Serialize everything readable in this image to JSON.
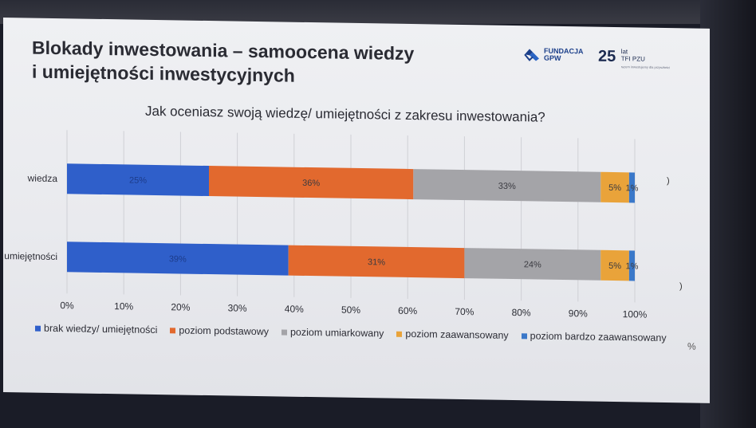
{
  "slide": {
    "title_line1": "Blokady inwestowania – samoocena wiedzy",
    "title_line2": "i umiejętności inwestycyjnych",
    "logo_gpw_line1": "FUNDACJA",
    "logo_gpw_line2": "GPW",
    "logo_pzu_number": "25",
    "logo_pzu_lat": "lat",
    "logo_pzu_name": "TFI PZU",
    "logo_pzu_tagline": "razem inwestujemy dla przyszłości",
    "percent_sign": "%",
    "stray_marks": [
      ")",
      ")"
    ]
  },
  "colors": {
    "brak": "#2f5fca",
    "podstawowy": "#e2692e",
    "umiarkowany": "#a4a4a8",
    "zaawansowany": "#e9a33a",
    "bardzo": "#3a78c9",
    "grid": "#cfd0d5",
    "label": "#2c2d35"
  },
  "chart_data": {
    "type": "bar",
    "orientation": "horizontal",
    "stacked": true,
    "title": "Jak oceniasz swoją wiedzę/ umiejętności z zakresu inwestowania?",
    "categories": [
      "wiedza",
      "umiejętności"
    ],
    "series": [
      {
        "name": "brak wiedzy/ umiejętności",
        "values": [
          25,
          39
        ],
        "labels": [
          "25%",
          "39%"
        ],
        "color_key": "brak"
      },
      {
        "name": "poziom podstawowy",
        "values": [
          36,
          31
        ],
        "labels": [
          "36%",
          "31%"
        ],
        "color_key": "podstawowy"
      },
      {
        "name": "poziom umiarkowany",
        "values": [
          33,
          24
        ],
        "labels": [
          "33%",
          "24%"
        ],
        "color_key": "umiarkowany"
      },
      {
        "name": "poziom zaawansowany",
        "values": [
          5,
          5
        ],
        "labels": [
          "5%",
          "5%"
        ],
        "color_key": "zaawansowany"
      },
      {
        "name": "poziom bardzo zaawansowany",
        "values": [
          1,
          1
        ],
        "labels": [
          "1%",
          "1%"
        ],
        "color_key": "bardzo"
      }
    ],
    "x_ticks": [
      "0%",
      "10%",
      "20%",
      "30%",
      "40%",
      "50%",
      "60%",
      "70%",
      "80%",
      "90%",
      "100%"
    ],
    "xlim": [
      0,
      100
    ],
    "grid": true,
    "legend_position": "bottom"
  }
}
